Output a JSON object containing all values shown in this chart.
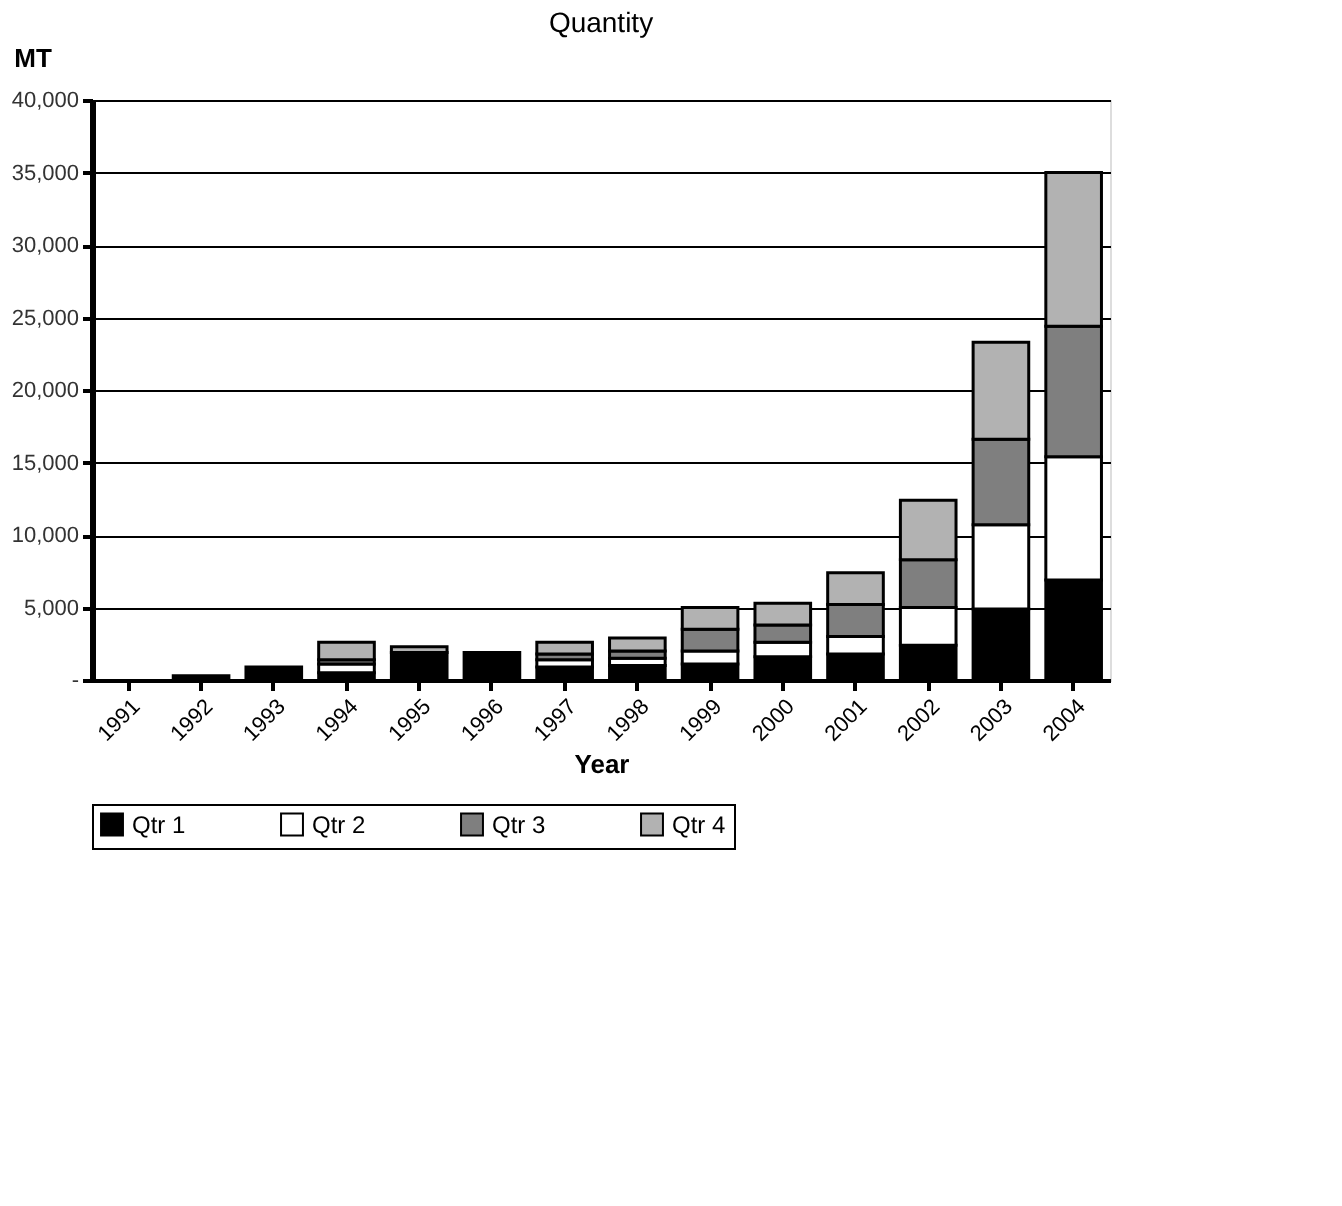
{
  "chart_data": {
    "type": "bar",
    "title": "Quantity",
    "xlabel": "Year",
    "ylabel": "MT",
    "stacked": true,
    "categories": [
      "1991",
      "1992",
      "1993",
      "1994",
      "1995",
      "1996",
      "1997",
      "1998",
      "1999",
      "2000",
      "2001",
      "2002",
      "2003",
      "2004"
    ],
    "series": [
      {
        "name": "Qtr 1",
        "color": "#000000",
        "values": [
          null,
          300,
          900,
          500,
          1900,
          1900,
          900,
          1000,
          1100,
          1600,
          1800,
          2400,
          4900,
          6900
        ]
      },
      {
        "name": "Qtr 2",
        "color": "#ffffff",
        "values": [
          null,
          null,
          null,
          600,
          null,
          null,
          500,
          500,
          900,
          1000,
          1200,
          2600,
          5800,
          8500
        ]
      },
      {
        "name": "Qtr 3",
        "color": "#7f7f7f",
        "values": [
          null,
          null,
          null,
          300,
          null,
          null,
          400,
          500,
          1500,
          1200,
          2200,
          3300,
          5900,
          9000
        ]
      },
      {
        "name": "Qtr 4",
        "color": "#b2b2b2",
        "values": [
          null,
          null,
          null,
          1200,
          400,
          null,
          800,
          900,
          1500,
          1500,
          2200,
          4100,
          6700,
          10600
        ]
      }
    ],
    "ylim": [
      0,
      40000
    ],
    "yticks": [
      {
        "value": 0,
        "label": "-"
      },
      {
        "value": 5000,
        "label": "5,000"
      },
      {
        "value": 10000,
        "label": "10,000"
      },
      {
        "value": 15000,
        "label": "15,000"
      },
      {
        "value": 20000,
        "label": "20,000"
      },
      {
        "value": 25000,
        "label": "25,000"
      },
      {
        "value": 30000,
        "label": "30,000"
      },
      {
        "value": 35000,
        "label": "35,000"
      },
      {
        "value": 40000,
        "label": "40,000"
      }
    ],
    "grid": "y",
    "legend": "bottom"
  }
}
